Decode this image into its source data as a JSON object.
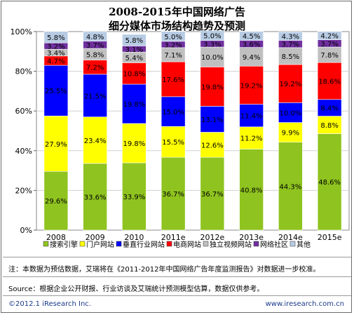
{
  "title_line1": "2008-2015年中国网络广告",
  "title_line2": "细分媒体市场结构趋势及预测",
  "chart_data": {
    "type": "bar",
    "stacked": true,
    "percent": true,
    "categories": [
      "2008",
      "2009",
      "2010",
      "2011e",
      "2012e",
      "2013e",
      "2014e",
      "2015e"
    ],
    "yticks": [
      "0%",
      "20%",
      "40%",
      "60%",
      "80%",
      "100%"
    ],
    "ylim": [
      0,
      100
    ],
    "grid": true,
    "legend_position": "bottom",
    "series": [
      {
        "name": "搜索引擎",
        "color": "#8fc31f",
        "values": [
          29.6,
          33.6,
          33.9,
          36.7,
          36.7,
          40.8,
          44.3,
          48.6
        ],
        "labels": [
          "29.6%",
          "33.6%",
          "33.9%",
          "36.7%",
          "36.7%",
          "40.8%",
          "44.3%",
          "48.6%"
        ]
      },
      {
        "name": "门户网站",
        "color": "#ffff00",
        "values": [
          27.9,
          23.4,
          19.8,
          15.5,
          12.6,
          11.2,
          9.9,
          8.8
        ],
        "labels": [
          "27.9%",
          "23.4%",
          "19.8%",
          "15.5%",
          "12.6%",
          "11.2%",
          "9.9%",
          "8.8%"
        ]
      },
      {
        "name": "垂直行业网站",
        "color": "#0000ff",
        "values": [
          25.5,
          21.5,
          19.8,
          15.0,
          13.1,
          11.4,
          10.0,
          8.4
        ],
        "labels": [
          "25.5%",
          "21.5%",
          "19.8%",
          "15.0%",
          "13.1%",
          "11.4%",
          "10.0%",
          "8.4%"
        ]
      },
      {
        "name": "电商网站",
        "color": "#ff0000",
        "values": [
          4.7,
          7.2,
          10.8,
          17.6,
          19.8,
          19.2,
          19.2,
          18.6
        ],
        "labels": [
          "4.7%",
          "7.2%",
          "10.8%",
          "17.6%",
          "19.8%",
          "19.2%",
          "19.2%",
          "18.6%"
        ]
      },
      {
        "name": "独立视频网站",
        "color": "#c0c0c0",
        "values": [
          3.4,
          5.8,
          5.4,
          7.1,
          10.0,
          9.4,
          8.5,
          7.8
        ],
        "labels": [
          "3.4%",
          "5.8%",
          "5.4%",
          "7.1%",
          "10.0%",
          "9.4%",
          "8.5%",
          "7.8%"
        ]
      },
      {
        "name": "网络社区",
        "color": "#7030a0",
        "values": [
          3.2,
          3.7,
          3.1,
          3.2,
          3.3,
          3.6,
          3.7,
          3.7
        ],
        "labels": [
          "3.2%",
          "3.7%",
          "3.1%",
          "3.2%",
          "3.3%",
          "3.6%",
          "3.7%",
          "3.7%"
        ]
      },
      {
        "name": "其他",
        "color": "#b8cce4",
        "values": [
          5.8,
          4.8,
          5.8,
          5.0,
          5.0,
          4.5,
          4.3,
          4.2
        ],
        "labels": [
          "5.8%",
          "4.8%",
          "5.8%",
          "5.0%",
          "5.0%",
          "4.5%",
          "4.3%",
          "4.2%"
        ]
      }
    ]
  },
  "notes": {
    "note": "注：本数据为预估数据，艾瑞将在《2011-2012年中国网络广告年度监测报告》对数据进一步校准。",
    "source": "Source：根据企业公开财报、行业访谈及艾瑞统计预测模型估算，数据仅供参考。",
    "copyright": "©2012.1 iResearch Inc.",
    "website": "www.iresearch.com.cn"
  }
}
